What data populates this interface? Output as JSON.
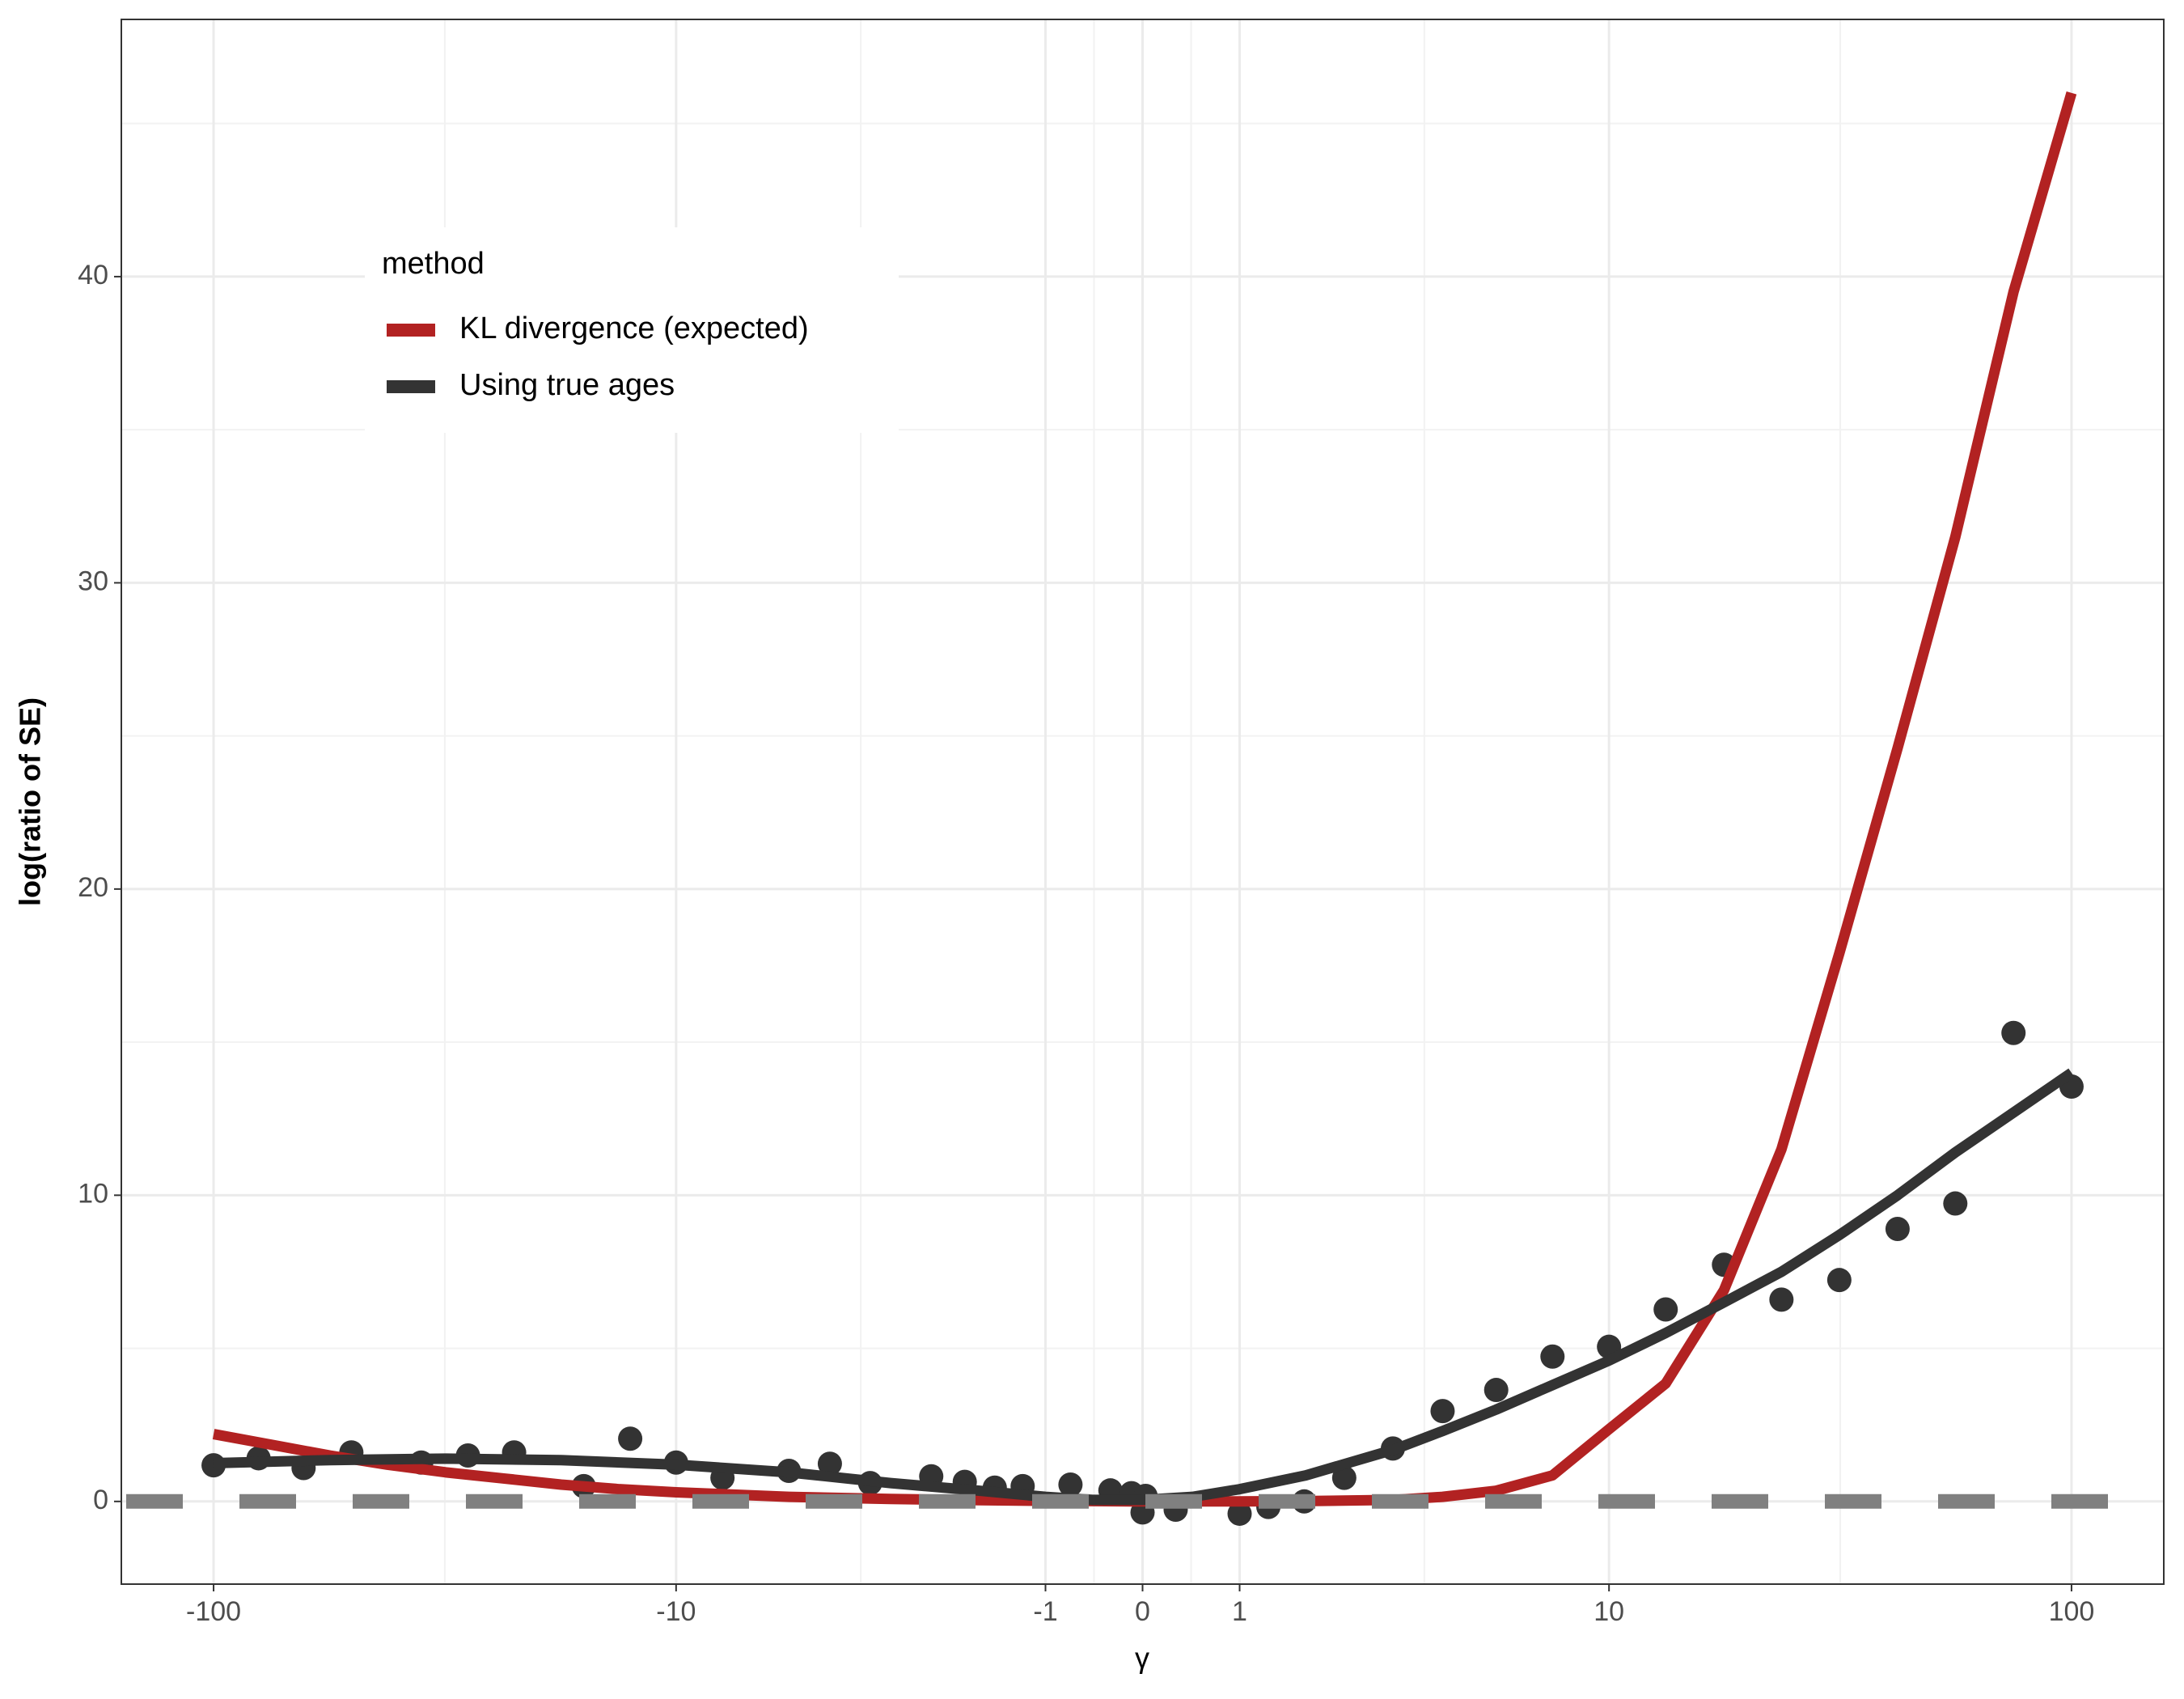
{
  "chart_data": {
    "type": "scatter",
    "xlabel": "γ",
    "ylabel": "log(ratio of SE)",
    "xscale": "pseudo_log",
    "xlim": [
      -158,
      158
    ],
    "ylim": [
      -2.7,
      48.4
    ],
    "xticks": [
      -100,
      -10,
      -1,
      0,
      1,
      10,
      100
    ],
    "yticks": [
      0,
      10,
      20,
      30,
      40
    ],
    "grid": true,
    "legend_title": "method",
    "legend_position": "top-left",
    "points": {
      "color": "#333333",
      "x": [
        -100,
        -80,
        -64,
        -50.5,
        -35.7,
        -28.3,
        -22.5,
        -15.9,
        -12.6,
        -10,
        -7.9,
        -5.6,
        -4.5,
        -3.6,
        -2.5,
        -2.0,
        -1.6,
        -1.26,
        -0.73,
        -0.32,
        -0.11,
        0,
        0.03,
        0.33,
        1,
        1.33,
        1.78,
        2.35,
        3.17,
        4.2,
        5.6,
        7.5,
        10,
        13.3,
        17.8,
        23.7,
        31.6,
        42.2,
        56.2,
        75,
        100
      ],
      "y": [
        1.18,
        1.41,
        1.09,
        1.6,
        1.27,
        1.5,
        1.6,
        0.5,
        2.05,
        1.27,
        0.77,
        1.0,
        1.23,
        0.6,
        0.82,
        0.64,
        0.45,
        0.5,
        0.55,
        0.36,
        0.27,
        -0.36,
        0.18,
        -0.27,
        -0.4,
        -0.18,
        0,
        0.77,
        1.73,
        2.95,
        3.64,
        4.73,
        5.05,
        6.27,
        7.73,
        6.59,
        7.23,
        8.9,
        9.73,
        15.3,
        13.55
      ]
    },
    "series": [
      {
        "name": "KL divergence (expected)",
        "color": "#b22222",
        "x": [
          -100,
          -75,
          -56.2,
          -42.2,
          -31.6,
          -23.7,
          -17.8,
          -13.3,
          -10,
          -5.6,
          -3.2,
          -1.8,
          -1,
          -0.5,
          0,
          0.5,
          1,
          1.8,
          3.2,
          4.2,
          5.6,
          7.5,
          10,
          13.3,
          17.8,
          23.7,
          31.6,
          42.2,
          56.2,
          75,
          100
        ],
        "values": [
          2.2,
          1.85,
          1.5,
          1.2,
          0.95,
          0.75,
          0.55,
          0.4,
          0.3,
          0.15,
          0.08,
          0.04,
          0.02,
          0.01,
          0,
          0,
          0,
          0.01,
          0.05,
          0.15,
          0.35,
          0.85,
          2.36,
          3.85,
          6.9,
          11.5,
          17.9,
          24.6,
          31.5,
          39.5,
          46.0
        ]
      },
      {
        "name": "Using true ages",
        "color": "#333333",
        "x": [
          -100,
          -56.2,
          -31.6,
          -17.8,
          -10,
          -5.6,
          -3.2,
          -1.8,
          -1,
          -0.5,
          0,
          0.5,
          1,
          1.8,
          3.2,
          4.2,
          5.6,
          7.5,
          10,
          13.3,
          17.8,
          23.7,
          31.6,
          42.2,
          56.2,
          75,
          100
        ],
        "values": [
          1.25,
          1.35,
          1.4,
          1.35,
          1.2,
          0.95,
          0.6,
          0.35,
          0.15,
          0.05,
          0.05,
          0.15,
          0.4,
          0.85,
          1.7,
          2.3,
          3.0,
          3.8,
          4.6,
          5.5,
          6.5,
          7.5,
          8.7,
          10.0,
          11.4,
          12.7,
          14.0
        ]
      }
    ],
    "hline": {
      "value": 0,
      "color": "#808080"
    }
  }
}
